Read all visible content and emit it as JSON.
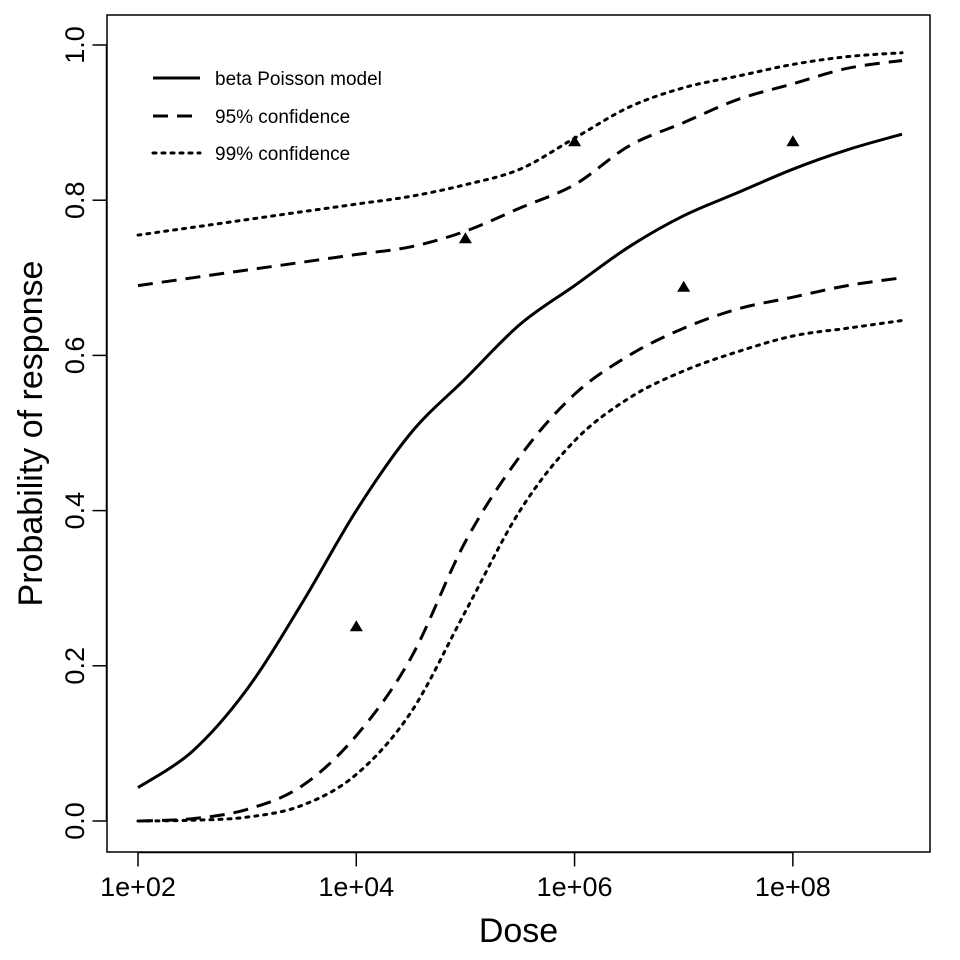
{
  "chart_data": {
    "type": "line",
    "title": "",
    "xlabel": "Dose",
    "ylabel": "Probability of response",
    "x_scale": "log10",
    "xlim": [
      100,
      1000000000
    ],
    "ylim": [
      0,
      1
    ],
    "grid": false,
    "legend_position": "top-left",
    "x_ticks": [
      {
        "value": 100,
        "label": "1e+02"
      },
      {
        "value": 10000,
        "label": "1e+04"
      },
      {
        "value": 1000000,
        "label": "1e+06"
      },
      {
        "value": 100000000,
        "label": "1e+08"
      }
    ],
    "y_ticks": [
      {
        "value": 0.0,
        "label": "0.0"
      },
      {
        "value": 0.2,
        "label": "0.2"
      },
      {
        "value": 0.4,
        "label": "0.4"
      },
      {
        "value": 0.6,
        "label": "0.6"
      },
      {
        "value": 0.8,
        "label": "0.8"
      },
      {
        "value": 1.0,
        "label": "1.0"
      }
    ],
    "series": [
      {
        "name": "beta Poisson model",
        "style": "solid",
        "color": "#000000",
        "x": [
          100,
          316,
          1000,
          3162,
          10000,
          31623,
          100000,
          316228,
          1000000,
          3162278,
          10000000,
          31622777,
          100000000,
          316227766,
          1000000000
        ],
        "y": [
          0.043,
          0.09,
          0.17,
          0.28,
          0.4,
          0.5,
          0.57,
          0.64,
          0.69,
          0.74,
          0.78,
          0.81,
          0.84,
          0.865,
          0.885
        ]
      },
      {
        "name": "95% confidence",
        "style": "dashed",
        "color": "#000000",
        "upper": {
          "x": [
            100,
            316,
            1000,
            3162,
            10000,
            31623,
            100000,
            316228,
            1000000,
            3162278,
            10000000,
            31622777,
            100000000,
            316227766,
            1000000000
          ],
          "y": [
            0.69,
            0.7,
            0.71,
            0.72,
            0.73,
            0.74,
            0.76,
            0.79,
            0.82,
            0.87,
            0.9,
            0.93,
            0.95,
            0.97,
            0.98
          ]
        },
        "lower": {
          "x": [
            100,
            316,
            1000,
            3162,
            10000,
            31623,
            100000,
            316228,
            1000000,
            3162278,
            10000000,
            31622777,
            100000000,
            316227766,
            1000000000
          ],
          "y": [
            0.0,
            0.003,
            0.015,
            0.045,
            0.11,
            0.21,
            0.36,
            0.47,
            0.55,
            0.6,
            0.635,
            0.66,
            0.675,
            0.69,
            0.7
          ]
        }
      },
      {
        "name": "99% confidence",
        "style": "dotted",
        "color": "#000000",
        "upper": {
          "x": [
            100,
            316,
            1000,
            3162,
            10000,
            31623,
            100000,
            316228,
            1000000,
            3162278,
            10000000,
            31622777,
            100000000,
            316227766,
            1000000000
          ],
          "y": [
            0.755,
            0.765,
            0.775,
            0.785,
            0.795,
            0.805,
            0.82,
            0.84,
            0.88,
            0.92,
            0.945,
            0.96,
            0.975,
            0.985,
            0.99
          ]
        },
        "lower": {
          "x": [
            100,
            316,
            1000,
            3162,
            10000,
            31623,
            100000,
            316228,
            1000000,
            3162278,
            10000000,
            31622777,
            100000000,
            316227766,
            1000000000
          ],
          "y": [
            0.0,
            0.001,
            0.005,
            0.02,
            0.06,
            0.14,
            0.27,
            0.4,
            0.49,
            0.545,
            0.58,
            0.605,
            0.625,
            0.635,
            0.645
          ]
        }
      }
    ],
    "observed_points": {
      "marker": "triangle",
      "x": [
        10000,
        100000,
        1000000,
        10000000,
        100000000
      ],
      "y": [
        0.25,
        0.75,
        0.875,
        0.6875,
        0.875
      ]
    }
  }
}
